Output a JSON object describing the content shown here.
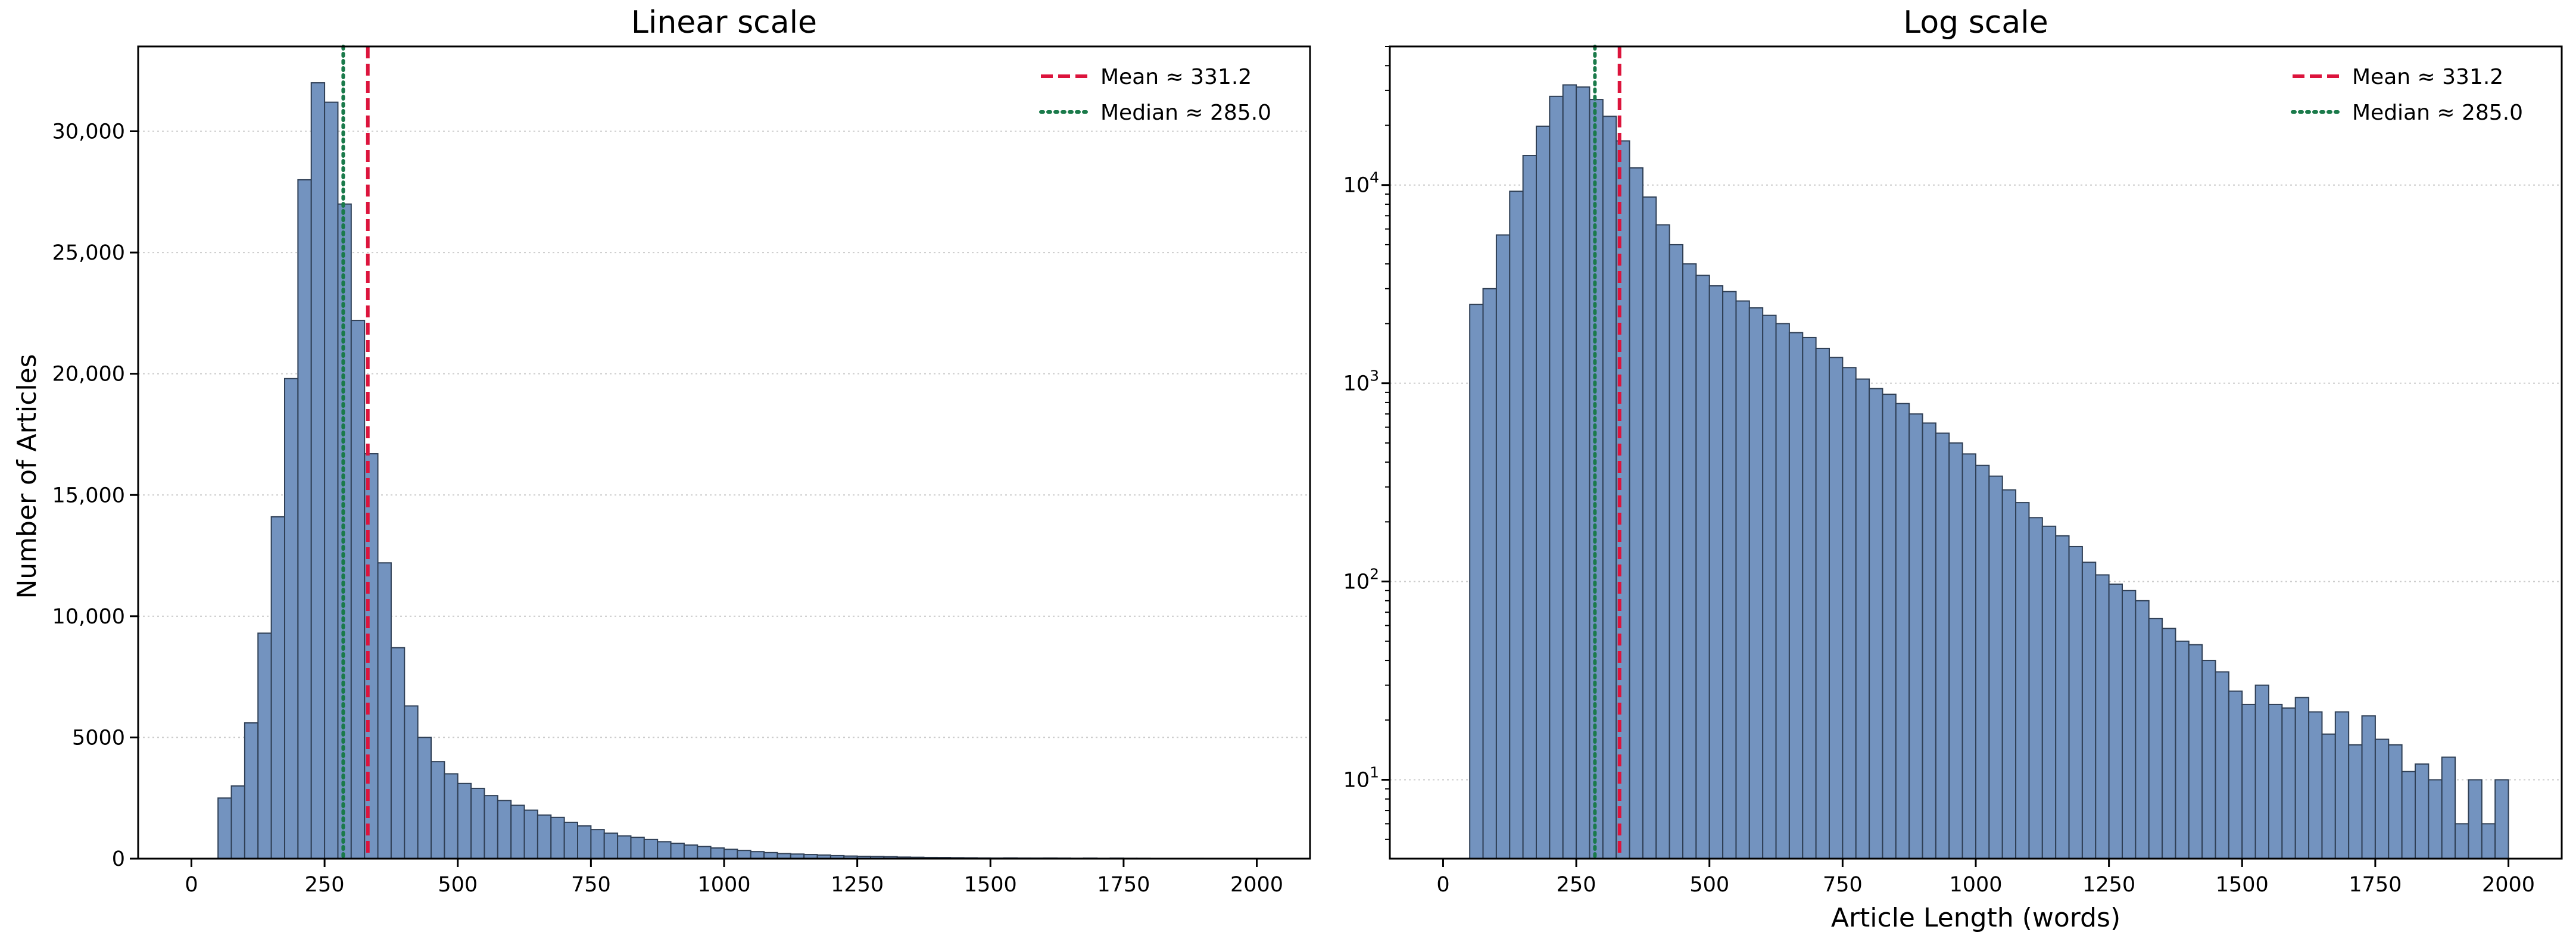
{
  "chart_data": [
    {
      "type": "bar",
      "title": "Linear scale",
      "xlabel": "",
      "ylabel": "Number of Articles",
      "x_scale": "linear",
      "y_scale": "linear",
      "xlim": [
        -100,
        2100
      ],
      "ylim": [
        0,
        33500
      ],
      "x_ticks": [
        0,
        250,
        500,
        750,
        1000,
        1250,
        1500,
        1750,
        2000
      ],
      "x_tick_labels": [
        "0",
        "250",
        "500",
        "750",
        "1000",
        "1250",
        "1500",
        "1750",
        "2000"
      ],
      "y_ticks": [
        0,
        5000,
        10000,
        15000,
        20000,
        25000,
        30000
      ],
      "y_tick_labels": [
        "0",
        "5000",
        "10,000",
        "15,000",
        "20,000",
        "25,000",
        "30,000"
      ],
      "grid": "horizontal dotted",
      "bar_color": "#7393bf",
      "bar_edge_color": "#2f3f55",
      "legend_position": "top-right",
      "legend": [
        {
          "label": "Mean ≈ 331.2",
          "color": "#dc143c",
          "style": "dashed"
        },
        {
          "label": "Median ≈ 285.0",
          "color": "#1a7a4a",
          "style": "dotted"
        }
      ],
      "reference_lines": [
        {
          "name": "mean",
          "x": 331.2,
          "color": "#dc143c",
          "style": "dashed"
        },
        {
          "name": "median",
          "x": 285.0,
          "color": "#1a7a4a",
          "style": "dotted"
        }
      ],
      "bin_start": 50,
      "bin_width": 25,
      "values": [
        2500,
        3000,
        5600,
        9300,
        14100,
        19800,
        28000,
        32000,
        31200,
        27000,
        22200,
        16700,
        12200,
        8700,
        6300,
        5000,
        4000,
        3500,
        3100,
        2900,
        2600,
        2400,
        2200,
        2000,
        1800,
        1700,
        1500,
        1350,
        1200,
        1050,
        940,
        880,
        790,
        700,
        630,
        560,
        500,
        440,
        385,
        340,
        290,
        250,
        210,
        190,
        170,
        150,
        125,
        108,
        97,
        90,
        80,
        65,
        58,
        50,
        48,
        40,
        35,
        28,
        24,
        30,
        24,
        23,
        26,
        22,
        17,
        22,
        15,
        21,
        16,
        15,
        11,
        12,
        10,
        13,
        6,
        10,
        6,
        10
      ]
    },
    {
      "type": "bar",
      "title": "Log scale",
      "xlabel": "Article Length (words)",
      "ylabel": "",
      "x_scale": "linear",
      "y_scale": "log",
      "xlim": [
        -100,
        2100
      ],
      "ylim": [
        4,
        50000
      ],
      "x_ticks": [
        0,
        250,
        500,
        750,
        1000,
        1250,
        1500,
        1750,
        2000
      ],
      "x_tick_labels": [
        "0",
        "250",
        "500",
        "750",
        "1000",
        "1250",
        "1500",
        "1750",
        "2000"
      ],
      "y_ticks": [
        10,
        100,
        1000,
        10000
      ],
      "y_tick_labels": [
        "10",
        "10",
        "10",
        "10"
      ],
      "y_tick_exponents": [
        "1",
        "2",
        "3",
        "4"
      ],
      "grid": "horizontal dotted",
      "bar_color": "#7393bf",
      "bar_edge_color": "#2f3f55",
      "legend_position": "top-right",
      "legend": [
        {
          "label": "Mean ≈ 331.2",
          "color": "#dc143c",
          "style": "dashed"
        },
        {
          "label": "Median ≈ 285.0",
          "color": "#1a7a4a",
          "style": "dotted"
        }
      ],
      "reference_lines": [
        {
          "name": "mean",
          "x": 331.2,
          "color": "#dc143c",
          "style": "dashed"
        },
        {
          "name": "median",
          "x": 285.0,
          "color": "#1a7a4a",
          "style": "dotted"
        }
      ],
      "bin_start": 50,
      "bin_width": 25,
      "values": [
        2500,
        3000,
        5600,
        9300,
        14100,
        19800,
        28000,
        32000,
        31200,
        27000,
        22200,
        16700,
        12200,
        8700,
        6300,
        5000,
        4000,
        3500,
        3100,
        2900,
        2600,
        2400,
        2200,
        2000,
        1800,
        1700,
        1500,
        1350,
        1200,
        1050,
        940,
        880,
        790,
        700,
        630,
        560,
        500,
        440,
        385,
        340,
        290,
        250,
        210,
        190,
        170,
        150,
        125,
        108,
        97,
        90,
        80,
        65,
        58,
        50,
        48,
        40,
        35,
        28,
        24,
        30,
        24,
        23,
        26,
        22,
        17,
        22,
        15,
        21,
        16,
        15,
        11,
        12,
        10,
        13,
        6,
        10,
        6,
        10
      ]
    }
  ]
}
